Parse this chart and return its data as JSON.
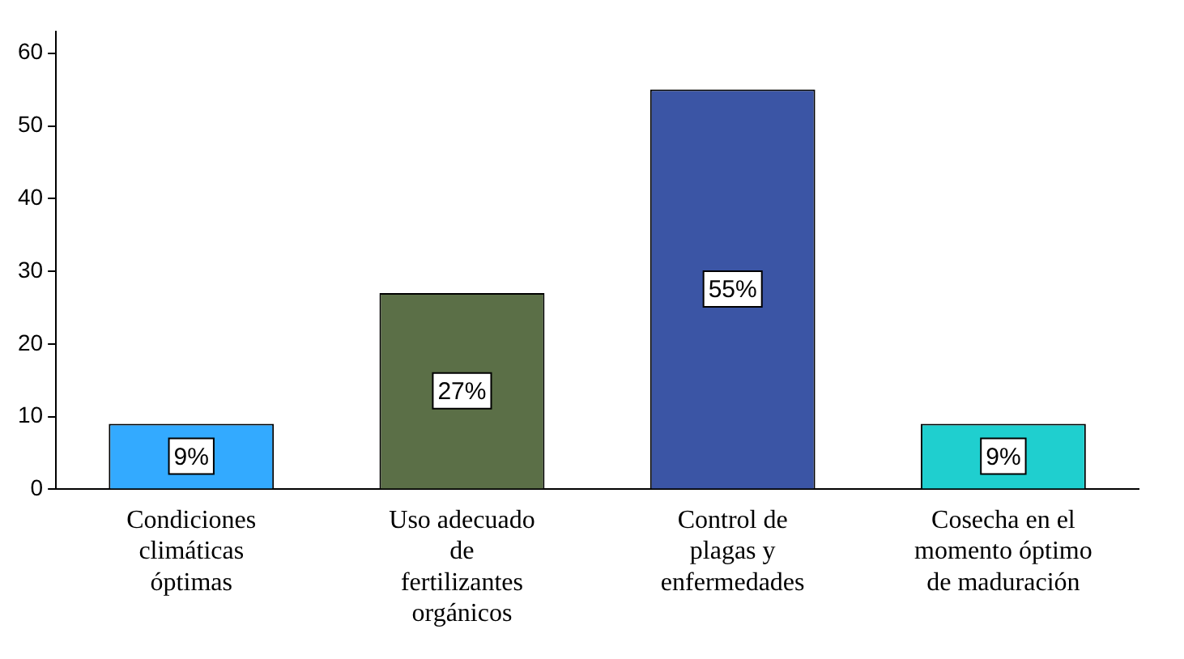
{
  "chart_data": {
    "type": "bar",
    "categories": [
      "Condiciones climáticas óptimas",
      "Uso adecuado de fertilizantes orgánicos",
      "Control de plagas y enfermedades",
      "Cosecha en el momento óptimo de maduración"
    ],
    "values": [
      9,
      27,
      55,
      9
    ],
    "colors": [
      "#33aaff",
      "#5b6f47",
      "#3b55a5",
      "#1fcfcf"
    ],
    "value_labels": [
      "9%",
      "27%",
      "55%",
      "9%"
    ],
    "ylim": [
      0,
      63
    ],
    "yticks": [
      0,
      10,
      20,
      30,
      40,
      50,
      60
    ],
    "legend": false
  }
}
